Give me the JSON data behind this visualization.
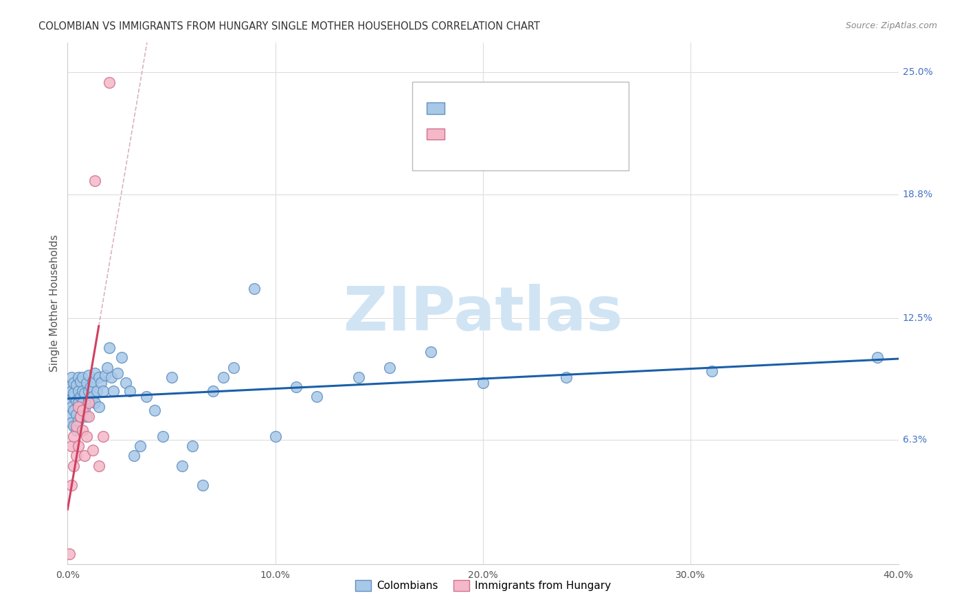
{
  "title": "COLOMBIAN VS IMMIGRANTS FROM HUNGARY SINGLE MOTHER HOUSEHOLDS CORRELATION CHART",
  "source": "Source: ZipAtlas.com",
  "ylabel": "Single Mother Households",
  "ytick_labels": [
    "6.3%",
    "12.5%",
    "18.8%",
    "25.0%"
  ],
  "ytick_values": [
    0.063,
    0.125,
    0.188,
    0.25
  ],
  "xtick_labels": [
    "0.0%",
    "10.0%",
    "20.0%",
    "30.0%",
    "40.0%"
  ],
  "xtick_values": [
    0.0,
    0.1,
    0.2,
    0.3,
    0.4
  ],
  "legend_label1": "Colombians",
  "legend_label2": "Immigrants from Hungary",
  "blue_color": "#a8c8e8",
  "pink_color": "#f4b8c8",
  "blue_edge_color": "#6090c0",
  "pink_edge_color": "#d07090",
  "blue_line_color": "#1a5fa8",
  "pink_line_color": "#d04060",
  "dash_line_color": "#d0a0b0",
  "watermark_text": "ZIPatlas",
  "watermark_color": "#d0e4f4",
  "blue_scatter_x": [
    0.001,
    0.001,
    0.001,
    0.002,
    0.002,
    0.002,
    0.002,
    0.003,
    0.003,
    0.003,
    0.003,
    0.003,
    0.004,
    0.004,
    0.004,
    0.004,
    0.005,
    0.005,
    0.005,
    0.005,
    0.006,
    0.006,
    0.006,
    0.006,
    0.007,
    0.007,
    0.007,
    0.008,
    0.008,
    0.009,
    0.009,
    0.01,
    0.01,
    0.01,
    0.011,
    0.012,
    0.012,
    0.013,
    0.013,
    0.014,
    0.015,
    0.015,
    0.016,
    0.017,
    0.018,
    0.019,
    0.02,
    0.021,
    0.022,
    0.024,
    0.026,
    0.028,
    0.03,
    0.032,
    0.035,
    0.038,
    0.042,
    0.046,
    0.05,
    0.055,
    0.06,
    0.065,
    0.07,
    0.075,
    0.08,
    0.09,
    0.1,
    0.11,
    0.12,
    0.14,
    0.155,
    0.175,
    0.2,
    0.24,
    0.31,
    0.39
  ],
  "blue_scatter_y": [
    0.083,
    0.09,
    0.075,
    0.088,
    0.072,
    0.095,
    0.08,
    0.085,
    0.092,
    0.078,
    0.07,
    0.087,
    0.083,
    0.076,
    0.091,
    0.068,
    0.088,
    0.073,
    0.095,
    0.082,
    0.079,
    0.085,
    0.093,
    0.075,
    0.088,
    0.082,
    0.095,
    0.087,
    0.079,
    0.092,
    0.075,
    0.088,
    0.083,
    0.096,
    0.09,
    0.085,
    0.093,
    0.082,
    0.097,
    0.088,
    0.095,
    0.08,
    0.092,
    0.088,
    0.096,
    0.1,
    0.11,
    0.095,
    0.088,
    0.097,
    0.105,
    0.092,
    0.088,
    0.055,
    0.06,
    0.085,
    0.078,
    0.065,
    0.095,
    0.05,
    0.06,
    0.04,
    0.088,
    0.095,
    0.1,
    0.14,
    0.065,
    0.09,
    0.085,
    0.095,
    0.1,
    0.108,
    0.092,
    0.095,
    0.098,
    0.105
  ],
  "pink_scatter_x": [
    0.001,
    0.002,
    0.002,
    0.003,
    0.003,
    0.004,
    0.004,
    0.005,
    0.005,
    0.006,
    0.007,
    0.007,
    0.008,
    0.009,
    0.01,
    0.01,
    0.012,
    0.013,
    0.015,
    0.017,
    0.02
  ],
  "pink_scatter_y": [
    0.005,
    0.04,
    0.06,
    0.05,
    0.065,
    0.07,
    0.055,
    0.06,
    0.08,
    0.075,
    0.068,
    0.078,
    0.055,
    0.065,
    0.075,
    0.082,
    0.058,
    0.195,
    0.05,
    0.065,
    0.245
  ],
  "xlim": [
    0.0,
    0.4
  ],
  "ylim": [
    0.0,
    0.265
  ],
  "figsize": [
    14.06,
    8.92
  ],
  "dpi": 100
}
